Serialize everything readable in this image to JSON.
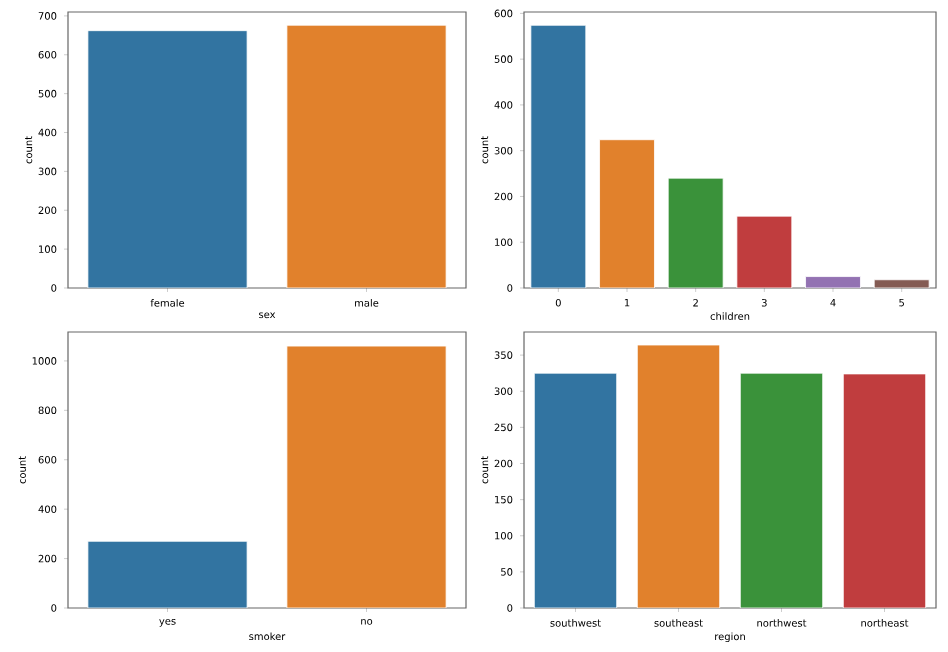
{
  "chart_data": [
    {
      "type": "bar",
      "categories": [
        "female",
        "male"
      ],
      "values": [
        662,
        676
      ],
      "colors": [
        "#3274a1",
        "#e1812c"
      ],
      "xlabel": "sex",
      "ylabel": "count",
      "ylim": [
        0,
        710
      ],
      "yticks": [
        0,
        100,
        200,
        300,
        400,
        500,
        600,
        700
      ]
    },
    {
      "type": "bar",
      "categories": [
        "0",
        "1",
        "2",
        "3",
        "4",
        "5"
      ],
      "values": [
        574,
        324,
        240,
        157,
        25,
        18
      ],
      "colors": [
        "#3274a1",
        "#e1812c",
        "#3a923a",
        "#c03d3e",
        "#9372b2",
        "#845b53"
      ],
      "xlabel": "children",
      "ylabel": "count",
      "ylim": [
        0,
        603
      ],
      "yticks": [
        0,
        100,
        200,
        300,
        400,
        500,
        600
      ]
    },
    {
      "type": "bar",
      "categories": [
        "yes",
        "no"
      ],
      "values": [
        270,
        1060
      ],
      "colors": [
        "#3274a1",
        "#e1812c"
      ],
      "xlabel": "smoker",
      "ylabel": "count",
      "ylim": [
        0,
        1117
      ],
      "yticks": [
        0,
        200,
        400,
        600,
        800,
        1000
      ]
    },
    {
      "type": "bar",
      "categories": [
        "southwest",
        "southeast",
        "northwest",
        "northeast"
      ],
      "values": [
        325,
        364,
        325,
        324
      ],
      "colors": [
        "#3274a1",
        "#e1812c",
        "#3a923a",
        "#c03d3e"
      ],
      "xlabel": "region",
      "ylabel": "count",
      "ylim": [
        0,
        382
      ],
      "yticks": [
        0,
        50,
        100,
        150,
        200,
        250,
        300,
        350
      ]
    }
  ]
}
